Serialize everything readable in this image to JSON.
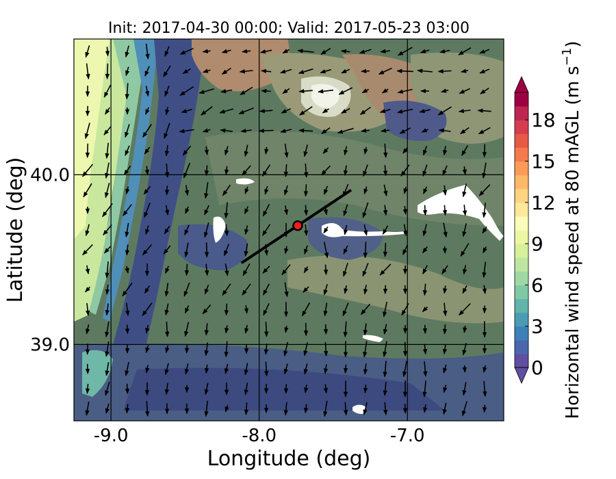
{
  "title": "Init: 2017-04-30 00:00; Valid: 2017-05-23 03:00",
  "axes": {
    "xlabel": "Longitude (deg)",
    "ylabel": "Latitude (deg)",
    "xlim": [
      -9.25,
      -6.35
    ],
    "ylim": [
      38.55,
      40.8
    ],
    "xticks": [
      -9.0,
      -8.0,
      -7.0
    ],
    "xtick_labels": [
      "-9.0",
      "-8.0",
      "-7.0"
    ],
    "yticks": [
      39.0,
      40.0
    ],
    "ytick_labels": [
      "39.0",
      "40.0"
    ],
    "grid": true
  },
  "colorbar": {
    "label": "Horizontal wind speed at 80 mAGL (m s",
    "label_sup": "−1",
    "label_close": ")",
    "min": 0,
    "max": 20,
    "step": 1,
    "ticks": [
      0,
      3,
      6,
      9,
      12,
      15,
      18
    ],
    "tick_labels": [
      "0",
      "3",
      "6",
      "9",
      "12",
      "15",
      "18"
    ],
    "extend": "both",
    "colors": [
      "#5e4fa2",
      "#4a67ad",
      "#3e81b9",
      "#4a9cb3",
      "#62b3a8",
      "#7fc9a5",
      "#9fd8a4",
      "#bde6a1",
      "#d7f09b",
      "#ecf7a4",
      "#fbfcba",
      "#fee89a",
      "#fed381",
      "#fdb869",
      "#fb9b5a",
      "#f57a4d",
      "#e75a45",
      "#d53e4f",
      "#bd2650",
      "#9e0142"
    ],
    "under_color": "#5e4fa2",
    "over_color": "#9e0142"
  },
  "transect": {
    "start": {
      "lon": -8.12,
      "lat": 39.48
    },
    "end": {
      "lon": -7.38,
      "lat": 39.91
    },
    "point": {
      "lon": -7.74,
      "lat": 39.7
    }
  }
}
